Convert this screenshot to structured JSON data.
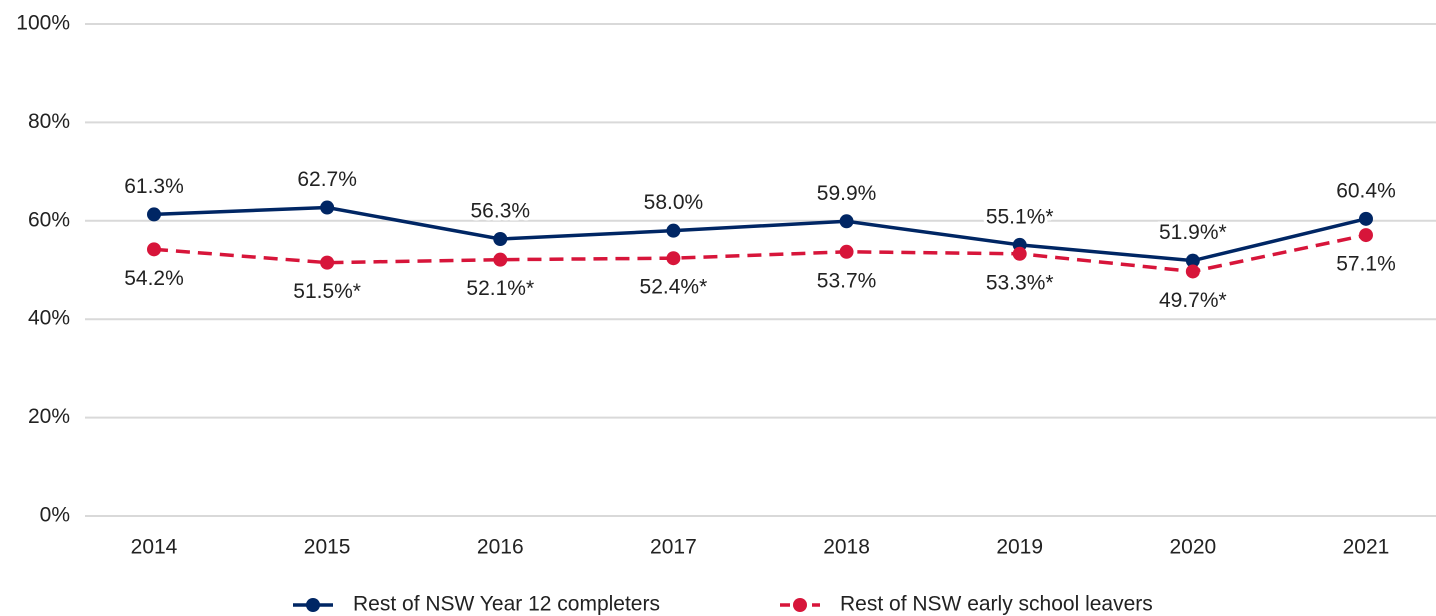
{
  "chart_data": {
    "type": "line",
    "categories": [
      "2014",
      "2015",
      "2016",
      "2017",
      "2018",
      "2019",
      "2020",
      "2021"
    ],
    "series": [
      {
        "name": "Rest of NSW Year 12 completers",
        "color": "#002664",
        "linestyle": "solid",
        "label_position": "above",
        "values": [
          61.3,
          62.7,
          56.3,
          58.0,
          59.9,
          55.1,
          51.9,
          60.4
        ],
        "value_labels": [
          "61.3%",
          "62.7%",
          "56.3%",
          "58.0%",
          "59.9%",
          "55.1%*",
          "51.9%*",
          "60.4%"
        ]
      },
      {
        "name": "Rest of NSW early school leavers",
        "color": "#d7153a",
        "linestyle": "dashed",
        "label_position": "below",
        "values": [
          54.2,
          51.5,
          52.1,
          52.4,
          53.7,
          53.3,
          49.7,
          57.1
        ],
        "value_labels": [
          "54.2%",
          "51.5%*",
          "52.1%*",
          "52.4%*",
          "53.7%",
          "53.3%*",
          "49.7%*",
          "57.1%"
        ]
      }
    ],
    "ylim": [
      0,
      100
    ],
    "yticks": [
      {
        "value": 0,
        "label": "0%"
      },
      {
        "value": 20,
        "label": "20%"
      },
      {
        "value": 40,
        "label": "40%"
      },
      {
        "value": 60,
        "label": "60%"
      },
      {
        "value": 80,
        "label": "80%"
      },
      {
        "value": 100,
        "label": "100%"
      }
    ],
    "grid": true,
    "legend": "bottom"
  }
}
